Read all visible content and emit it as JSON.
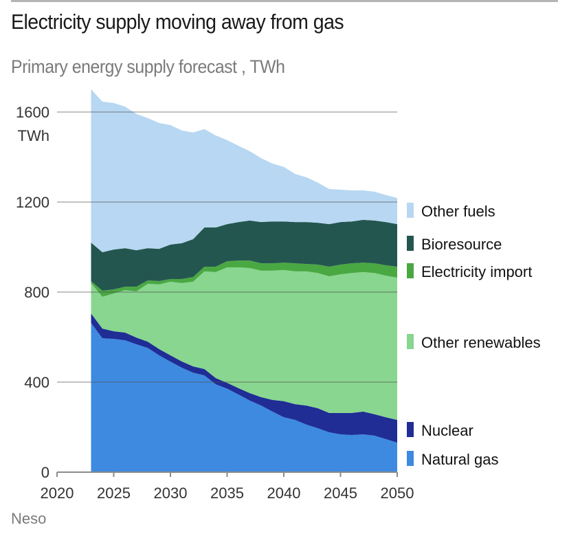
{
  "header": {
    "title": "Electricity supply moving away from gas",
    "subtitle": "Primary energy supply forecast , TWh"
  },
  "footer": {
    "source": "Neso"
  },
  "chart_data": {
    "type": "area",
    "stacked": true,
    "title": "Electricity supply moving away from gas",
    "subtitle": "Primary energy supply forecast , TWh",
    "xlabel": "",
    "ylabel": "TWh",
    "y_unit_label": "TWh",
    "xlim": [
      2020,
      2050
    ],
    "ylim": [
      0,
      1700
    ],
    "x_ticks": [
      2020,
      2025,
      2030,
      2035,
      2040,
      2045,
      2050
    ],
    "y_ticks": [
      0,
      400,
      800,
      1200,
      1600
    ],
    "grid": true,
    "legend_position": "right",
    "x": [
      2023,
      2024,
      2025,
      2026,
      2027,
      2028,
      2029,
      2030,
      2031,
      2032,
      2033,
      2034,
      2035,
      2036,
      2037,
      2038,
      2039,
      2040,
      2041,
      2042,
      2043,
      2044,
      2045,
      2046,
      2047,
      2048,
      2049,
      2050
    ],
    "series": [
      {
        "name": "Natural gas",
        "color": "#3d8ae0",
        "values": [
          663,
          595,
          592,
          586,
          568,
          552,
          519,
          491,
          464,
          442,
          430,
          390,
          371,
          345,
          318,
          296,
          269,
          244,
          232,
          211,
          195,
          177,
          168,
          165,
          168,
          162,
          147,
          131
        ]
      },
      {
        "name": "Nuclear",
        "color": "#1f2d95",
        "values": [
          42,
          43,
          34,
          34,
          30,
          28,
          28,
          28,
          28,
          28,
          28,
          28,
          26,
          28,
          33,
          37,
          52,
          71,
          70,
          85,
          89,
          86,
          95,
          98,
          101,
          95,
          97,
          101
        ]
      },
      {
        "name": "Other renewables",
        "color": "#88d68f",
        "values": [
          135,
          141,
          168,
          189,
          205,
          257,
          287,
          327,
          348,
          376,
          434,
          471,
          513,
          537,
          556,
          562,
          574,
          583,
          590,
          596,
          601,
          607,
          616,
          622,
          620,
          628,
          629,
          632
        ]
      },
      {
        "name": "Electricity import",
        "color": "#4aa843",
        "values": [
          9,
          27,
          18,
          15,
          21,
          15,
          15,
          12,
          18,
          21,
          21,
          24,
          27,
          30,
          33,
          33,
          33,
          33,
          36,
          33,
          37,
          43,
          43,
          43,
          42,
          43,
          46,
          49
        ]
      },
      {
        "name": "Bioresource",
        "color": "#245650",
        "values": [
          171,
          171,
          177,
          171,
          162,
          143,
          143,
          153,
          159,
          168,
          174,
          174,
          165,
          171,
          178,
          183,
          186,
          183,
          183,
          186,
          186,
          189,
          189,
          186,
          190,
          190,
          192,
          189
        ]
      },
      {
        "name": "Other fuels",
        "color": "#b7d7f2",
        "values": [
          681,
          669,
          651,
          629,
          605,
          578,
          559,
          531,
          501,
          474,
          437,
          409,
          373,
          339,
          308,
          284,
          257,
          242,
          214,
          199,
          178,
          156,
          144,
          138,
          131,
          128,
          120,
          116
        ]
      }
    ],
    "legend": [
      "Other fuels",
      "Bioresource",
      "Electricity import",
      "Other renewables",
      "Nuclear",
      "Natural gas"
    ]
  }
}
